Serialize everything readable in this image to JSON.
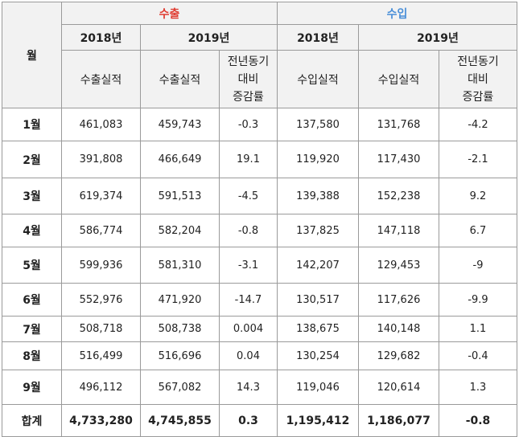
{
  "header": {
    "month_label": "월",
    "export_title": "수출",
    "import_title": "수입",
    "year_2018": "2018년",
    "year_2019": "2019년",
    "export_actual": "수출실적",
    "import_actual": "수입실적",
    "change_lines": [
      "전년동기",
      "대비",
      "증감률"
    ]
  },
  "colors": {
    "export_title": "#e03c31",
    "import_title": "#4a8fd8",
    "header_bg": "#f2f2f2",
    "border": "#9a9a9a"
  },
  "rows": [
    {
      "month": "1월",
      "exp2018": "461,083",
      "exp2019": "459,743",
      "expChange": "-0.3",
      "imp2018": "137,580",
      "imp2019": "131,768",
      "impChange": "-4.2"
    },
    {
      "month": "2월",
      "exp2018": "391,808",
      "exp2019": "466,649",
      "expChange": "19.1",
      "imp2018": "119,920",
      "imp2019": "117,430",
      "impChange": "-2.1"
    },
    {
      "month": "3월",
      "exp2018": "619,374",
      "exp2019": "591,513",
      "expChange": "-4.5",
      "imp2018": "139,388",
      "imp2019": "152,238",
      "impChange": "9.2"
    },
    {
      "month": "4월",
      "exp2018": "586,774",
      "exp2019": "582,204",
      "expChange": "-0.8",
      "imp2018": "137,825",
      "imp2019": "147,118",
      "impChange": "6.7"
    },
    {
      "month": "5월",
      "exp2018": "599,936",
      "exp2019": "581,310",
      "expChange": "-3.1",
      "imp2018": "142,207",
      "imp2019": "129,453",
      "impChange": "-9"
    },
    {
      "month": "6월",
      "exp2018": "552,976",
      "exp2019": "471,920",
      "expChange": "-14.7",
      "imp2018": "130,517",
      "imp2019": "117,626",
      "impChange": "-9.9"
    },
    {
      "month": "7월",
      "exp2018": "508,718",
      "exp2019": "508,738",
      "expChange": "0.004",
      "imp2018": "138,675",
      "imp2019": "140,148",
      "impChange": "1.1"
    },
    {
      "month": "8월",
      "exp2018": "516,499",
      "exp2019": "516,696",
      "expChange": "0.04",
      "imp2018": "130,254",
      "imp2019": "129,682",
      "impChange": "-0.4"
    },
    {
      "month": "9월",
      "exp2018": "496,112",
      "exp2019": "567,082",
      "expChange": "14.3",
      "imp2018": "119,046",
      "imp2019": "120,614",
      "impChange": "1.3"
    }
  ],
  "total": {
    "month": "합계",
    "exp2018": "4,733,280",
    "exp2019": "4,745,855",
    "expChange": "0.3",
    "imp2018": "1,195,412",
    "imp2019": "1,186,077",
    "impChange": "-0.8"
  }
}
